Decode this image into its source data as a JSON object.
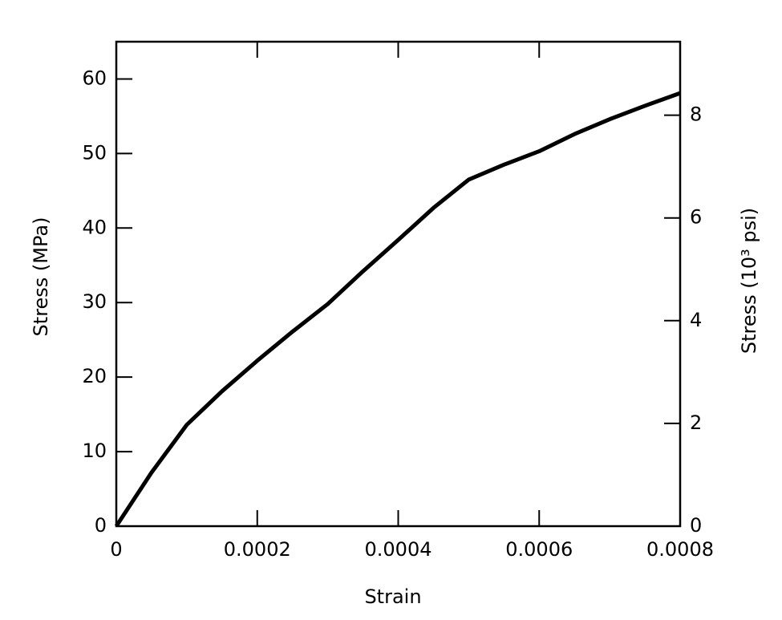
{
  "chart_data": {
    "type": "line",
    "x_label": "Strain",
    "y_label": "Stress (MPa)",
    "y2_label": "Stress (10³ psi)",
    "x": [
      0,
      5e-05,
      0.0001,
      0.00015,
      0.0002,
      0.00025,
      0.0003,
      0.00035,
      0.0004,
      0.00045,
      0.0005,
      0.00055,
      0.0006,
      0.00065,
      0.0007,
      0.00075,
      0.0008
    ],
    "values": [
      0,
      7.2,
      13.6,
      18.1,
      22.2,
      26.1,
      29.8,
      34.2,
      38.4,
      42.7,
      46.5,
      48.5,
      50.3,
      52.6,
      54.6,
      56.4,
      58.1
    ],
    "color": "#000000",
    "xlim": [
      0,
      0.0008
    ],
    "xticks": [
      0,
      0.0002,
      0.0004,
      0.0006,
      0.0008
    ],
    "ylim": [
      0,
      65
    ],
    "yticks": [
      0,
      10,
      20,
      30,
      40,
      50,
      60
    ],
    "y2lim": [
      0,
      9.43
    ],
    "y2ticks": [
      0,
      2,
      4,
      6,
      8
    ]
  }
}
